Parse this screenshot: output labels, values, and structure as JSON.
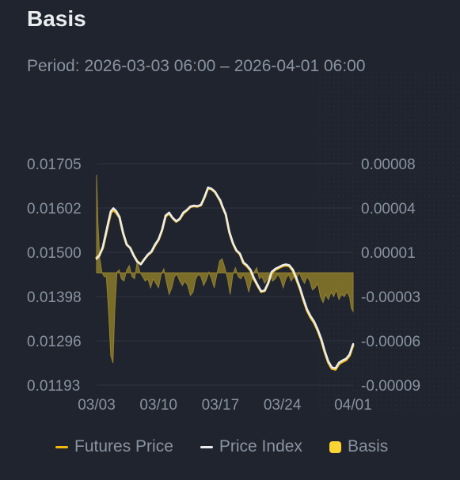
{
  "title": "Basis",
  "period": {
    "label": "Period:",
    "range": "2026-03-03 06:00 – 2026-04-01 06:00"
  },
  "colors": {
    "background": "#1f242e",
    "futures": "#f0b90b",
    "index": "#eaecef",
    "basis_fill": "#8a7a2a",
    "basis_swatch": "#fcd535",
    "grid": "#2f3542",
    "axis_text": "#8b93a1"
  },
  "legend": [
    {
      "name": "Futures Price",
      "icon": "line-swatch-icon"
    },
    {
      "name": "Price Index",
      "icon": "line-swatch-icon"
    },
    {
      "name": "Basis",
      "icon": "square-swatch-icon"
    }
  ],
  "chart_data": {
    "type": "line",
    "x_tick_labels": [
      "03/03",
      "03/10",
      "03/17",
      "03/24",
      "04/01"
    ],
    "x_tick_days": [
      0,
      7,
      14,
      21,
      29
    ],
    "left_axis": {
      "ticks": [
        "0.01705",
        "0.01602",
        "0.01500",
        "0.01398",
        "0.01296",
        "0.01193"
      ],
      "ylim": [
        0.01193,
        0.01705
      ]
    },
    "right_axis": {
      "ticks": [
        "0.00008",
        "0.00004",
        "0.00001",
        "-0.00003",
        "-0.00006",
        "-0.00009"
      ],
      "ylim": [
        -9e-05,
        8e-05
      ]
    },
    "grid": true,
    "legend_position": "bottom",
    "series": [
      {
        "name": "Price Index",
        "axis": "left",
        "x": [
          0,
          0.3,
          0.7,
          1.0,
          1.3,
          1.6,
          1.9,
          2.2,
          2.6,
          3.0,
          3.4,
          3.8,
          4.2,
          4.6,
          5.0,
          5.4,
          5.8,
          6.2,
          6.6,
          7.0,
          7.4,
          7.8,
          8.2,
          8.6,
          9.0,
          9.4,
          9.8,
          10.2,
          10.6,
          11.0,
          11.4,
          11.8,
          12.2,
          12.6,
          13.0,
          13.4,
          13.8,
          14.0,
          14.2,
          14.6,
          15.0,
          15.4,
          15.8,
          16.2,
          16.6,
          17.0,
          17.4,
          17.8,
          18.2,
          18.6,
          19.0,
          19.4,
          19.8,
          20.2,
          20.6,
          21.0,
          21.4,
          21.8,
          22.2,
          22.6,
          23.0,
          23.4,
          23.8,
          24.2,
          24.6,
          25.0,
          25.4,
          25.8,
          26.2,
          26.6,
          27.0,
          27.4,
          27.8,
          28.2,
          28.6,
          29.0
        ],
        "y": [
          0.01485,
          0.01492,
          0.01512,
          0.0154,
          0.01568,
          0.01595,
          0.01602,
          0.01596,
          0.01582,
          0.01545,
          0.01518,
          0.0151,
          0.01492,
          0.01478,
          0.01472,
          0.01484,
          0.01495,
          0.01502,
          0.01518,
          0.0153,
          0.01552,
          0.01585,
          0.01592,
          0.0158,
          0.01572,
          0.01578,
          0.01592,
          0.01598,
          0.01606,
          0.01608,
          0.01607,
          0.0161,
          0.01628,
          0.0165,
          0.01647,
          0.0164,
          0.01626,
          0.0162,
          0.01608,
          0.01588,
          0.01548,
          0.01522,
          0.01505,
          0.01497,
          0.01477,
          0.0147,
          0.0146,
          0.0144,
          0.01425,
          0.0141,
          0.01412,
          0.0143,
          0.01455,
          0.01462,
          0.01466,
          0.0147,
          0.01472,
          0.0147,
          0.0146,
          0.0144,
          0.01418,
          0.01392,
          0.01368,
          0.01352,
          0.0134,
          0.01322,
          0.013,
          0.01272,
          0.01248,
          0.01234,
          0.01232,
          0.01245,
          0.0125,
          0.01254,
          0.01264,
          0.01288
        ]
      },
      {
        "name": "Futures Price",
        "axis": "left",
        "x": [
          0,
          0.3,
          0.7,
          1.0,
          1.3,
          1.6,
          1.9,
          2.2,
          2.6,
          3.0,
          3.4,
          3.8,
          4.2,
          4.6,
          5.0,
          5.4,
          5.8,
          6.2,
          6.6,
          7.0,
          7.4,
          7.8,
          8.2,
          8.6,
          9.0,
          9.4,
          9.8,
          10.2,
          10.6,
          11.0,
          11.4,
          11.8,
          12.2,
          12.6,
          13.0,
          13.4,
          13.8,
          14.0,
          14.2,
          14.6,
          15.0,
          15.4,
          15.8,
          16.2,
          16.6,
          17.0,
          17.4,
          17.8,
          18.2,
          18.6,
          19.0,
          19.4,
          19.8,
          20.2,
          20.6,
          21.0,
          21.4,
          21.8,
          22.2,
          22.6,
          23.0,
          23.4,
          23.8,
          24.2,
          24.6,
          25.0,
          25.4,
          25.8,
          26.2,
          26.6,
          27.0,
          27.4,
          27.8,
          28.2,
          28.6,
          29.0
        ],
        "y": [
          0.01488,
          0.01493,
          0.0151,
          0.01537,
          0.01564,
          0.01591,
          0.01598,
          0.01592,
          0.0158,
          0.01544,
          0.01518,
          0.0151,
          0.01493,
          0.01479,
          0.01473,
          0.01484,
          0.01494,
          0.01501,
          0.01516,
          0.01529,
          0.01551,
          0.01583,
          0.0159,
          0.01579,
          0.01571,
          0.01577,
          0.0159,
          0.01597,
          0.01605,
          0.01607,
          0.01606,
          0.01609,
          0.01627,
          0.01649,
          0.01646,
          0.01639,
          0.01625,
          0.01618,
          0.01607,
          0.01588,
          0.01547,
          0.01521,
          0.01504,
          0.01496,
          0.01475,
          0.01468,
          0.01458,
          0.01438,
          0.01423,
          0.01409,
          0.01411,
          0.01428,
          0.01453,
          0.0146,
          0.01464,
          0.01468,
          0.0147,
          0.01468,
          0.01457,
          0.01437,
          0.01415,
          0.01389,
          0.01365,
          0.01349,
          0.01337,
          0.01319,
          0.01297,
          0.01269,
          0.01245,
          0.01231,
          0.01229,
          0.01242,
          0.01247,
          0.01251,
          0.01261,
          0.01285
        ]
      },
      {
        "name": "Basis",
        "axis": "right",
        "type": "area",
        "x": [
          0,
          0.15,
          0.35,
          0.6,
          0.85,
          1.1,
          1.35,
          1.6,
          1.85,
          2.05,
          2.3,
          2.55,
          2.8,
          3.1,
          3.4,
          3.7,
          4.0,
          4.3,
          4.6,
          4.9,
          5.2,
          5.5,
          5.8,
          6.1,
          6.4,
          6.7,
          7.0,
          7.3,
          7.6,
          7.9,
          8.2,
          8.5,
          8.8,
          9.1,
          9.4,
          9.7,
          10.0,
          10.3,
          10.6,
          10.9,
          11.2,
          11.5,
          11.8,
          12.1,
          12.4,
          12.7,
          13.0,
          13.3,
          13.6,
          13.9,
          14.2,
          14.5,
          14.8,
          15.1,
          15.4,
          15.7,
          16.0,
          16.3,
          16.6,
          16.9,
          17.2,
          17.5,
          17.8,
          18.1,
          18.4,
          18.7,
          19.0,
          19.3,
          19.6,
          19.9,
          20.2,
          20.5,
          20.8,
          21.1,
          21.4,
          21.7,
          22.0,
          22.3,
          22.6,
          22.9,
          23.2,
          23.5,
          23.8,
          24.1,
          24.4,
          24.7,
          25.0,
          25.3,
          25.6,
          25.9,
          26.2,
          26.5,
          26.8,
          27.1,
          27.4,
          27.7,
          28.0,
          28.3,
          28.6,
          28.8,
          29.0
        ],
        "y": [
          7e-05,
          3e-05,
          5e-06,
          -8e-06,
          -1.2e-05,
          -1.2e-05,
          -4e-05,
          -7e-05,
          -7.5e-05,
          -4e-05,
          -8e-06,
          -6e-06,
          -1.4e-05,
          -1.6e-05,
          -6e-06,
          -2e-06,
          -1.2e-05,
          -1.4e-05,
          2e-06,
          -8e-06,
          -1.2e-05,
          -1.6e-05,
          -1.4e-05,
          -2.2e-05,
          -1.4e-05,
          -1.8e-05,
          -2.2e-05,
          -1e-05,
          -5e-06,
          -1.7e-05,
          -2.8e-05,
          -2.2e-05,
          -1.2e-05,
          -1e-05,
          -1.6e-05,
          -2e-05,
          -1.6e-05,
          -2e-05,
          -2.9e-05,
          -2.6e-05,
          -1.4e-05,
          -1e-05,
          -1.2e-05,
          -2e-05,
          -1.5e-05,
          -8e-06,
          -1.4e-05,
          -2.2e-05,
          -1e-05,
          2e-06,
          4e-06,
          -4e-06,
          -1.4e-05,
          -2.8e-05,
          -1e-05,
          -4e-06,
          -1.2e-05,
          -1.4e-05,
          -1e-05,
          -1.6e-05,
          -2.6e-05,
          -1.6e-05,
          -8e-06,
          -4e-06,
          -1.4e-05,
          -1.2e-05,
          -1.8e-05,
          -1.4e-05,
          -1e-05,
          -1.6e-05,
          -1.4e-05,
          -1e-05,
          -1.4e-05,
          -2.2e-05,
          -1.4e-05,
          -1e-05,
          -1.6e-05,
          -1.2e-05,
          -1.4e-05,
          -8e-06,
          -1.4e-05,
          -1.8e-05,
          -1.2e-05,
          -1.6e-05,
          -2.4e-05,
          -2.2e-05,
          -1.8e-05,
          -3e-05,
          -3.4e-05,
          -2.8e-05,
          -3.2e-05,
          -2.6e-05,
          -3e-05,
          -2.4e-05,
          -3.2e-05,
          -2.8e-05,
          -3e-05,
          -2.6e-05,
          -3e-05,
          -3.8e-05,
          -4e-05
        ]
      }
    ]
  }
}
